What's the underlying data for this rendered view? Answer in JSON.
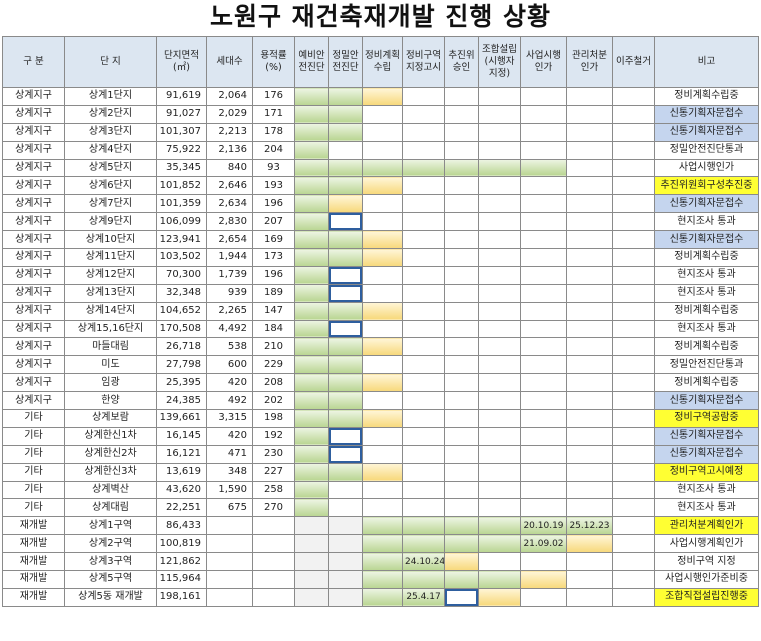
{
  "title": "노원구 재건축재개발 진행 상황",
  "headers": {
    "gubun": "구 분",
    "danji": "단 지",
    "area": "단지면적\n(㎡)",
    "households": "세대수",
    "far": "용적률\n(%)",
    "s1": "예비안\n전진단",
    "s2": "정밀안\n전진단",
    "s3": "정비계획\n수립",
    "s4": "정비구역\n지정고시",
    "s5": "추진위\n승인",
    "s6": "조합설립\n(시행자\n지정)",
    "s7": "사업시행\n인가",
    "s8": "관리처분\n인가",
    "s9": "이주철거",
    "note": "비고"
  },
  "rows": [
    {
      "gubun": "상계지구",
      "danji": "상계1단지",
      "area": "91,619",
      "households": "2,064",
      "far": "176",
      "stages": [
        "g",
        "g",
        "y",
        "",
        "",
        "",
        "",
        "",
        ""
      ],
      "note": "정비계획수립중",
      "note_style": ""
    },
    {
      "gubun": "상계지구",
      "danji": "상계2단지",
      "area": "91,027",
      "households": "2,029",
      "far": "171",
      "stages": [
        "g",
        "g",
        "",
        "",
        "",
        "",
        "",
        "",
        ""
      ],
      "note": "신통기획자문접수",
      "note_style": "nb"
    },
    {
      "gubun": "상계지구",
      "danji": "상계3단지",
      "area": "101,307",
      "households": "2,213",
      "far": "178",
      "stages": [
        "g",
        "g",
        "",
        "",
        "",
        "",
        "",
        "",
        ""
      ],
      "note": "신통기획자문접수",
      "note_style": "nb"
    },
    {
      "gubun": "상계지구",
      "danji": "상계4단지",
      "area": "75,922",
      "households": "2,136",
      "far": "204",
      "stages": [
        "g",
        "",
        "",
        "",
        "",
        "",
        "",
        "",
        ""
      ],
      "note": "정밀안전진단통과",
      "note_style": ""
    },
    {
      "gubun": "상계지구",
      "danji": "상계5단지",
      "area": "35,345",
      "households": "840",
      "far": "93",
      "stages": [
        "g",
        "g",
        "g",
        "g",
        "g",
        "g",
        "g",
        "",
        ""
      ],
      "note": "사업시행인가",
      "note_style": ""
    },
    {
      "gubun": "상계지구",
      "danji": "상계6단지",
      "area": "101,852",
      "households": "2,646",
      "far": "193",
      "stages": [
        "g",
        "g",
        "y",
        "",
        "",
        "",
        "",
        "",
        ""
      ],
      "note": "추진위원회구성추진중",
      "note_style": "nyl"
    },
    {
      "gubun": "상계지구",
      "danji": "상계7단지",
      "area": "101,359",
      "households": "2,634",
      "far": "196",
      "stages": [
        "g",
        "y",
        "",
        "",
        "",
        "",
        "",
        "",
        ""
      ],
      "note": "신통기획자문접수",
      "note_style": "nb"
    },
    {
      "gubun": "상계지구",
      "danji": "상계9단지",
      "area": "106,099",
      "households": "2,830",
      "far": "207",
      "stages": [
        "g",
        "b",
        "",
        "",
        "",
        "",
        "",
        "",
        ""
      ],
      "note": "현지조사 통과",
      "note_style": ""
    },
    {
      "gubun": "상계지구",
      "danji": "상계10단지",
      "area": "123,941",
      "households": "2,654",
      "far": "169",
      "stages": [
        "g",
        "g",
        "y",
        "",
        "",
        "",
        "",
        "",
        ""
      ],
      "note": "신통기획자문접수",
      "note_style": "nb"
    },
    {
      "gubun": "상계지구",
      "danji": "상계11단지",
      "area": "103,502",
      "households": "1,944",
      "far": "173",
      "stages": [
        "g",
        "g",
        "y",
        "",
        "",
        "",
        "",
        "",
        ""
      ],
      "note": "정비계획수립중",
      "note_style": ""
    },
    {
      "gubun": "상계지구",
      "danji": "상계12단지",
      "area": "70,300",
      "households": "1,739",
      "far": "196",
      "stages": [
        "g",
        "b",
        "",
        "",
        "",
        "",
        "",
        "",
        ""
      ],
      "note": "현지조사 통과",
      "note_style": ""
    },
    {
      "gubun": "상계지구",
      "danji": "상계13단지",
      "area": "32,348",
      "households": "939",
      "far": "189",
      "stages": [
        "g",
        "b",
        "",
        "",
        "",
        "",
        "",
        "",
        ""
      ],
      "note": "현지조사 통과",
      "note_style": ""
    },
    {
      "gubun": "상계지구",
      "danji": "상계14단지",
      "area": "104,652",
      "households": "2,265",
      "far": "147",
      "stages": [
        "g",
        "g",
        "y",
        "",
        "",
        "",
        "",
        "",
        ""
      ],
      "note": "정비계획수립중",
      "note_style": ""
    },
    {
      "gubun": "상계지구",
      "danji": "상계15,16단지",
      "area": "170,508",
      "households": "4,492",
      "far": "184",
      "stages": [
        "g",
        "b",
        "",
        "",
        "",
        "",
        "",
        "",
        ""
      ],
      "note": "현지조사 통과",
      "note_style": ""
    },
    {
      "gubun": "상계지구",
      "danji": "마들대림",
      "area": "26,718",
      "households": "538",
      "far": "210",
      "stages": [
        "g",
        "g",
        "y",
        "",
        "",
        "",
        "",
        "",
        ""
      ],
      "note": "정비계획수립중",
      "note_style": ""
    },
    {
      "gubun": "상계지구",
      "danji": "미도",
      "area": "27,798",
      "households": "600",
      "far": "229",
      "stages": [
        "g",
        "g",
        "",
        "",
        "",
        "",
        "",
        "",
        ""
      ],
      "note": "정밀안전진단통과",
      "note_style": ""
    },
    {
      "gubun": "상계지구",
      "danji": "임광",
      "area": "25,395",
      "households": "420",
      "far": "208",
      "stages": [
        "g",
        "g",
        "y",
        "",
        "",
        "",
        "",
        "",
        ""
      ],
      "note": "정비계획수립중",
      "note_style": ""
    },
    {
      "gubun": "상계지구",
      "danji": "한양",
      "area": "24,385",
      "households": "492",
      "far": "202",
      "stages": [
        "g",
        "g",
        "",
        "",
        "",
        "",
        "",
        "",
        ""
      ],
      "note": "신통기획자문접수",
      "note_style": "nb"
    },
    {
      "gubun": "기타",
      "danji": "상계보람",
      "area": "139,661",
      "households": "3,315",
      "far": "198",
      "stages": [
        "g",
        "g",
        "y",
        "",
        "",
        "",
        "",
        "",
        ""
      ],
      "note": "정비구역공람중",
      "note_style": "nyl"
    },
    {
      "gubun": "기타",
      "danji": "상계한신1차",
      "area": "16,145",
      "households": "420",
      "far": "192",
      "stages": [
        "g",
        "b",
        "",
        "",
        "",
        "",
        "",
        "",
        ""
      ],
      "note": "신통기획자문접수",
      "note_style": "nb"
    },
    {
      "gubun": "기타",
      "danji": "상계한신2차",
      "area": "16,121",
      "households": "471",
      "far": "230",
      "stages": [
        "g",
        "b",
        "",
        "",
        "",
        "",
        "",
        "",
        ""
      ],
      "note": "신통기획자문접수",
      "note_style": "nb"
    },
    {
      "gubun": "기타",
      "danji": "상계한신3차",
      "area": "13,619",
      "households": "348",
      "far": "227",
      "stages": [
        "g",
        "g",
        "y",
        "",
        "",
        "",
        "",
        "",
        ""
      ],
      "note": "정비구역고시예정",
      "note_style": "nyl"
    },
    {
      "gubun": "기타",
      "danji": "상계벽산",
      "area": "43,620",
      "households": "1,590",
      "far": "258",
      "stages": [
        "g",
        "",
        "",
        "",
        "",
        "",
        "",
        "",
        ""
      ],
      "note": "현지조사 통과",
      "note_style": ""
    },
    {
      "gubun": "기타",
      "danji": "상계대림",
      "area": "22,251",
      "households": "675",
      "far": "270",
      "stages": [
        "g",
        "",
        "",
        "",
        "",
        "",
        "",
        "",
        ""
      ],
      "note": "현지조사 통과",
      "note_style": ""
    },
    {
      "gubun": "재개발",
      "danji": "상계1구역",
      "area": "86,433",
      "households": "",
      "far": "",
      "stages": [
        "gr",
        "gr",
        "g",
        "g",
        "g",
        "g",
        "g",
        "g",
        ""
      ],
      "dates": {
        "6": "20.10.19",
        "7": "25.12.23"
      },
      "note": "관리처분계획인가",
      "note_style": "nyl"
    },
    {
      "gubun": "재개발",
      "danji": "상계2구역",
      "area": "100,819",
      "households": "",
      "far": "",
      "stages": [
        "gr",
        "gr",
        "g",
        "g",
        "g",
        "g",
        "g",
        "y",
        ""
      ],
      "dates": {
        "6": "21.09.02"
      },
      "note": "사업시행계획인가",
      "note_style": ""
    },
    {
      "gubun": "재개발",
      "danji": "상계3구역",
      "area": "121,862",
      "households": "",
      "far": "",
      "stages": [
        "gr",
        "gr",
        "g",
        "g",
        "y",
        "",
        "",
        "",
        ""
      ],
      "dates": {
        "3": "24.10.24"
      },
      "note": "정비구역 지정",
      "note_style": ""
    },
    {
      "gubun": "재개발",
      "danji": "상계5구역",
      "area": "115,964",
      "households": "",
      "far": "",
      "stages": [
        "gr",
        "gr",
        "g",
        "g",
        "g",
        "g",
        "y",
        "",
        ""
      ],
      "note": "사업시행인가준비중",
      "note_style": ""
    },
    {
      "gubun": "재개발",
      "danji": "상계5동 재개발",
      "area": "198,161",
      "households": "",
      "far": "",
      "stages": [
        "gr",
        "gr",
        "g",
        "g",
        "b",
        "y",
        "",
        "",
        ""
      ],
      "dates": {
        "3": "25.4.17"
      },
      "note": "조합직접설립진행중",
      "note_style": "nyl"
    }
  ]
}
